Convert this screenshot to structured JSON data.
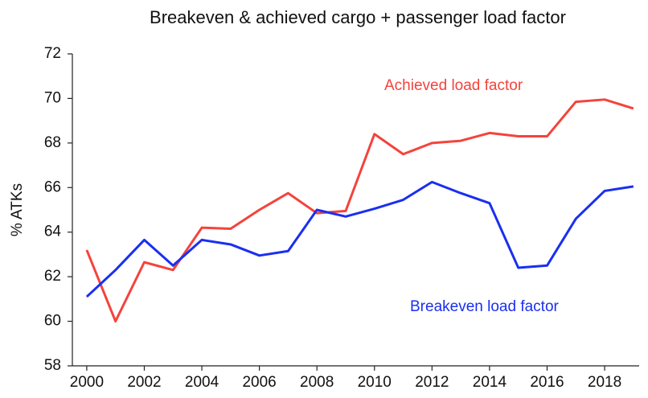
{
  "chart_data": {
    "type": "line",
    "title": "Breakeven & achieved cargo + passenger load factor",
    "y_label": "% ATKs",
    "x": [
      2000,
      2001,
      2002,
      2003,
      2004,
      2005,
      2006,
      2007,
      2008,
      2009,
      2010,
      2011,
      2012,
      2013,
      2014,
      2015,
      2016,
      2017,
      2018,
      2019
    ],
    "series": [
      {
        "name": "Achieved load factor",
        "color": "#f4433c",
        "values": [
          63.2,
          60.0,
          62.65,
          62.3,
          64.2,
          64.15,
          65.0,
          65.75,
          64.85,
          64.95,
          68.4,
          67.5,
          68.0,
          68.1,
          68.45,
          68.3,
          68.3,
          69.85,
          69.95,
          69.55
        ]
      },
      {
        "name": "Breakeven load factor",
        "color": "#1a2ff0",
        "values": [
          61.1,
          62.3,
          63.65,
          62.5,
          63.65,
          63.45,
          62.95,
          63.15,
          65.0,
          64.7,
          65.05,
          65.45,
          66.25,
          65.75,
          65.3,
          62.4,
          62.5,
          64.6,
          65.85,
          66.05
        ]
      }
    ],
    "xlim": [
      1999.5,
      2019.2
    ],
    "xticks": [
      2000,
      2002,
      2004,
      2006,
      2008,
      2010,
      2012,
      2014,
      2016,
      2018
    ],
    "ylim": [
      58,
      72
    ],
    "yticks": [
      58,
      60,
      62,
      64,
      66,
      68,
      70,
      72
    ]
  }
}
